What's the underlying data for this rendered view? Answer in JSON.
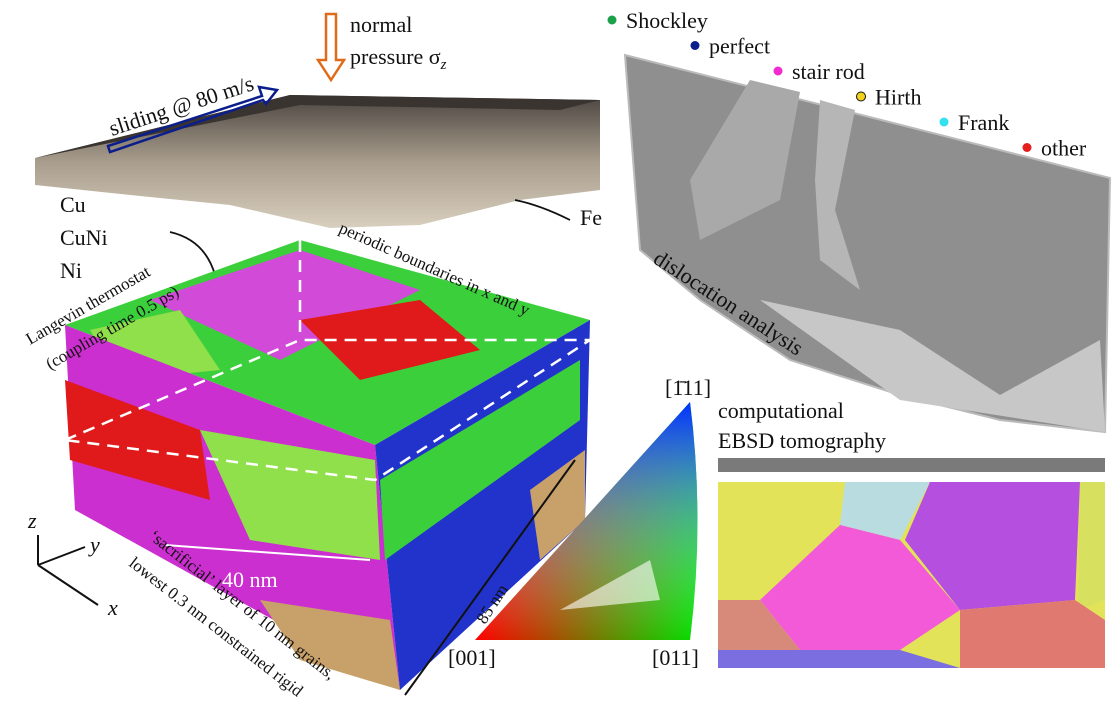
{
  "sliding": "sliding @ 80 m/s",
  "pressure": {
    "line1": "normal",
    "line2": "pressure σ",
    "subscript": "z"
  },
  "fe": "Fe",
  "materials": [
    "Cu",
    "CuNi",
    "Ni"
  ],
  "thermostat": [
    "Langevin thermostat",
    "(coupling time 0.5 ps)"
  ],
  "periodic": "periodic boundaries in x and y",
  "width_label": "40 nm",
  "depth_label": "85 nm",
  "sacrificial": [
    "‘sacrificial’ layer of 10 nm grains,",
    "lowest 0.3 nm constrained rigid"
  ],
  "axes": {
    "z": "z",
    "y": "y",
    "x": "x"
  },
  "ipf": {
    "top": "[1̄11]",
    "left": "[001]",
    "right": "[011]"
  },
  "legend": [
    {
      "name": "Shockley",
      "color": "#1aa14a"
    },
    {
      "name": "perfect",
      "color": "#0b1e8c"
    },
    {
      "name": "stair rod",
      "color": "#f02bd0"
    },
    {
      "name": "Hirth",
      "color": "#f2d21b"
    },
    {
      "name": "Frank",
      "color": "#35e0f0"
    },
    {
      "name": "other",
      "color": "#e51e1e"
    }
  ],
  "dislocation": "dislocation analysis",
  "ebsd": [
    "computational",
    "EBSD tomography"
  ]
}
